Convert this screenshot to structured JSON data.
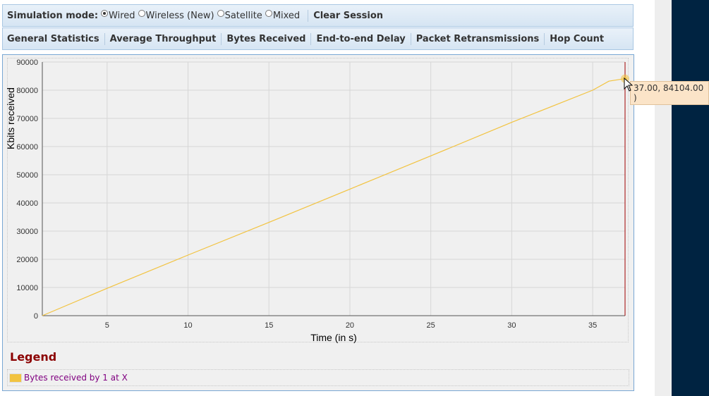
{
  "mode_bar": {
    "label": "Simulation mode:",
    "options": [
      {
        "label": "Wired",
        "selected": true
      },
      {
        "label": "Wireless (New)",
        "selected": false
      },
      {
        "label": "Satellite",
        "selected": false
      },
      {
        "label": "Mixed",
        "selected": false
      }
    ],
    "clear_label": "Clear Session"
  },
  "tabs": [
    {
      "label": "General Statistics"
    },
    {
      "label": "Average Throughput"
    },
    {
      "label": "Bytes Received"
    },
    {
      "label": "End-to-end Delay"
    },
    {
      "label": "Packet Retransmissions"
    },
    {
      "label": "Hop Count"
    }
  ],
  "legend": {
    "title": "Legend",
    "items": [
      {
        "label": "Bytes received by 1 at X",
        "color": "#f2c340"
      }
    ]
  },
  "tooltip": "37.00, 84104.00 )",
  "chart_data": {
    "type": "line",
    "xlabel": "Time (in s)",
    "ylabel": "Kbits received",
    "xlim": [
      1,
      37
    ],
    "ylim": [
      0,
      90000
    ],
    "xticks": [
      5,
      10,
      15,
      20,
      25,
      30,
      35
    ],
    "yticks": [
      0,
      10000,
      20000,
      30000,
      40000,
      50000,
      60000,
      70000,
      80000,
      90000
    ],
    "grid": true,
    "series": [
      {
        "name": "Bytes received by 1 at X",
        "color": "#f2c340",
        "x": [
          1,
          5,
          10,
          15,
          20,
          25,
          30,
          35,
          36,
          37
        ],
        "y": [
          0,
          9700,
          21500,
          33100,
          44900,
          56700,
          68600,
          80000,
          83200,
          84104
        ]
      }
    ],
    "highlight": {
      "x": 37,
      "y": 84104
    }
  }
}
